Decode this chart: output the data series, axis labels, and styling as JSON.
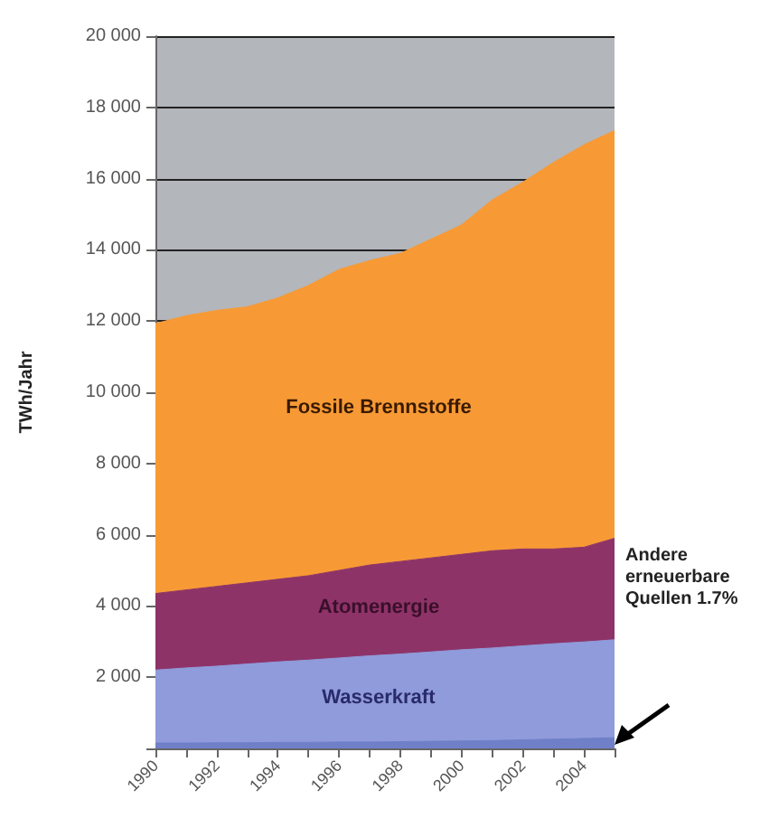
{
  "chart_data": {
    "type": "area",
    "stacked": true,
    "ylabel": "TWh/Jahr",
    "categories": [
      "1990",
      null,
      "1992",
      null,
      "1994",
      null,
      "1996",
      null,
      "1998",
      null,
      "2000",
      null,
      "2002",
      null,
      "2004",
      null
    ],
    "series": [
      {
        "color": "#6f7fc8",
        "values": [
          150,
          150,
          160,
          160,
          170,
          170,
          180,
          180,
          190,
          200,
          210,
          220,
          240,
          260,
          280,
          300
        ]
      },
      {
        "name": "Wasserkraft",
        "color": "#8f9bdb",
        "values": [
          2050,
          2110,
          2150,
          2210,
          2260,
          2310,
          2360,
          2420,
          2460,
          2510,
          2560,
          2600,
          2640,
          2680,
          2710,
          2750
        ]
      },
      {
        "name": "Atomenergie",
        "color": "#8e3368",
        "values": [
          2150,
          2190,
          2240,
          2280,
          2320,
          2370,
          2460,
          2550,
          2600,
          2640,
          2680,
          2730,
          2720,
          2660,
          2660,
          2850
        ]
      },
      {
        "name": "Fossile Brennstoffe",
        "color": "#f79a35",
        "values": [
          7580,
          7700,
          7750,
          7750,
          7900,
          8150,
          8450,
          8550,
          8650,
          8950,
          9250,
          9850,
          10300,
          10850,
          11300,
          11450
        ]
      }
    ],
    "ylim": [
      0,
      20000
    ],
    "yticks": [
      {
        "value": 0,
        "label": null
      },
      {
        "value": 2000,
        "label": "2 000"
      },
      {
        "value": 4000,
        "label": "4 000"
      },
      {
        "value": 6000,
        "label": "6 000"
      },
      {
        "value": 8000,
        "label": "8 000"
      },
      {
        "value": 10000,
        "label": "10 000"
      },
      {
        "value": 12000,
        "label": "12 000"
      },
      {
        "value": 14000,
        "label": "14 000"
      },
      {
        "value": 16000,
        "label": "16 000"
      },
      {
        "value": 18000,
        "label": "18 000"
      },
      {
        "value": 20000,
        "label": "20 000"
      }
    ],
    "grid": "y",
    "legend": false,
    "annotations": [
      "Andere erneuerbare Quellen 1.7%"
    ]
  }
}
